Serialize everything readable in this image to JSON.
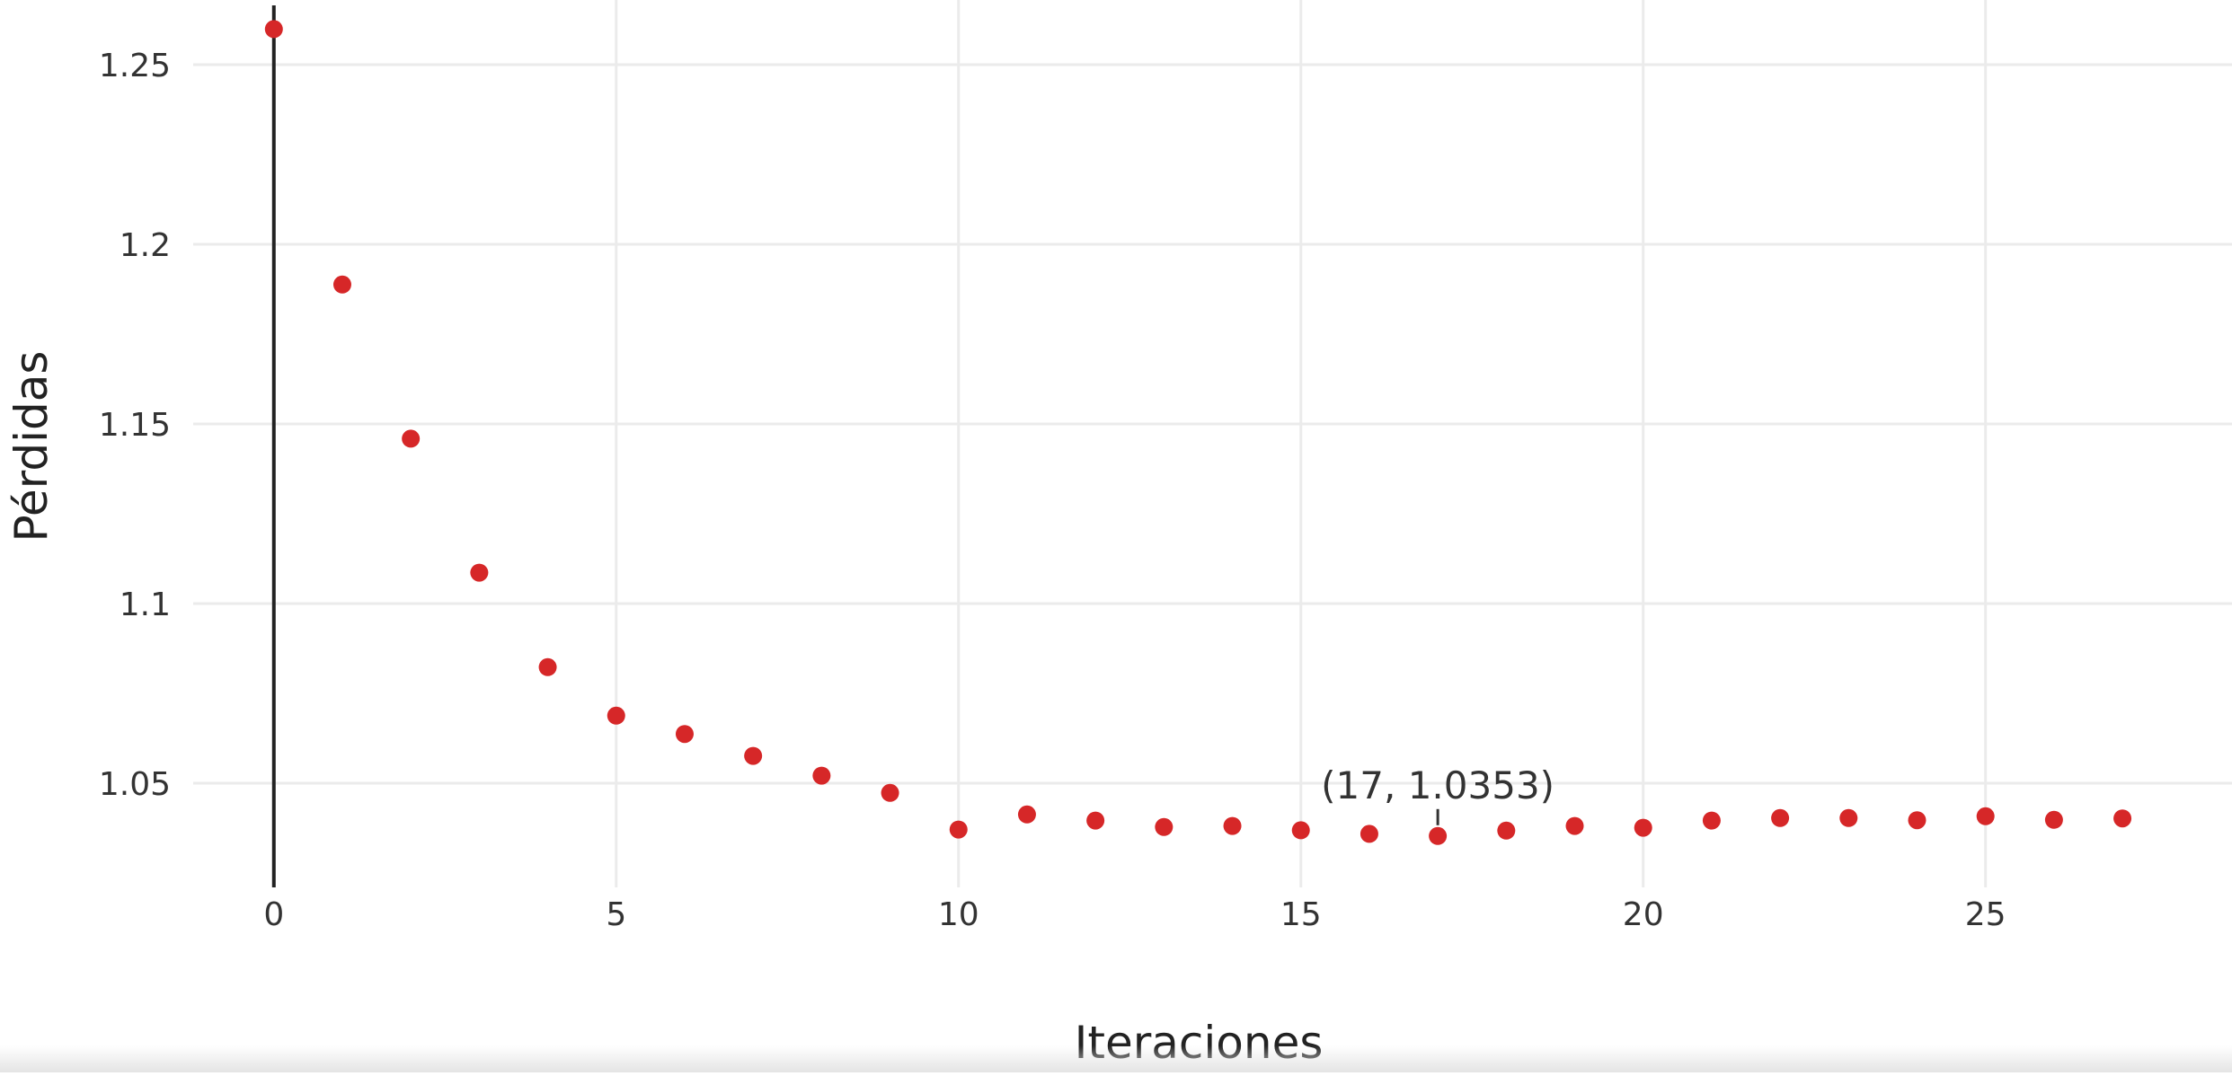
{
  "chart_data": {
    "type": "scatter",
    "title": "",
    "xlabel": "Iteraciones",
    "ylabel": "Pérdidas",
    "xlim": [
      -4.0,
      28.6
    ],
    "ylim": [
      1.021,
      1.268
    ],
    "x_ticks": [
      0,
      5,
      10,
      15,
      20,
      25
    ],
    "y_ticks": [
      1.05,
      1.1,
      1.15,
      1.2,
      1.25
    ],
    "y_tick_labels": [
      "1.05",
      "1.1",
      "1.15",
      "1.2",
      "1.25"
    ],
    "grid": true,
    "legend": "none",
    "marker_color": "#d62728",
    "x": [
      0,
      1,
      2,
      3,
      4,
      5,
      6,
      7,
      8,
      9,
      10,
      11,
      12,
      13,
      14,
      15,
      16,
      17,
      18,
      19,
      20,
      21,
      22,
      23,
      24,
      25,
      26,
      27
    ],
    "y": [
      1.2599,
      1.1888,
      1.1459,
      1.1086,
      1.0823,
      1.0688,
      1.0637,
      1.0576,
      1.0521,
      1.0473,
      1.0371,
      1.0413,
      1.0396,
      1.0378,
      1.0381,
      1.0369,
      1.0359,
      1.0353,
      1.0368,
      1.0381,
      1.0376,
      1.0396,
      1.0403,
      1.0403,
      1.0397,
      1.0408,
      1.0398,
      1.0402
    ],
    "annotation": {
      "x": 17,
      "y": 1.0353,
      "text": "(17, 1.0353)"
    }
  },
  "colors": {
    "grid": "#ebebeb",
    "zero_line": "#222222",
    "tick_text": "#333333"
  }
}
